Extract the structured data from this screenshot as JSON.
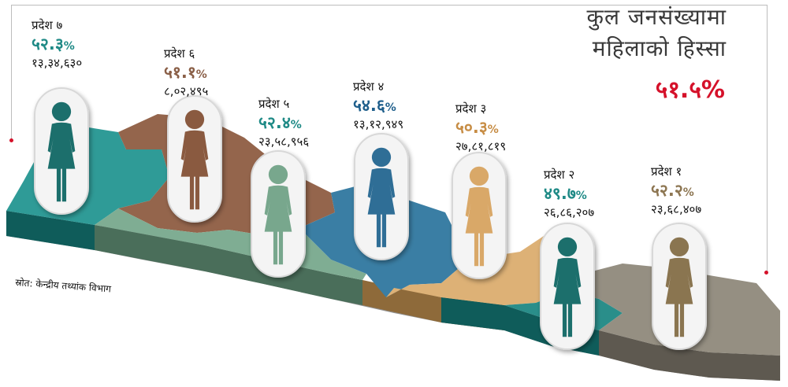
{
  "title_line1": "कुल जनसंख्यामा",
  "title_line2": "महिलाको हिस्सा",
  "overall_share": "५१.५%",
  "source": "स्रोत: केन्द्रीय तथ्यांक विभाग",
  "colors": {
    "overall": "#d5112a",
    "teal": "#1f8a86",
    "brown": "#8a5f47",
    "sage": "#78a78d",
    "blue": "#2f6e96",
    "tan": "#d6a76a",
    "olive": "#8d7652",
    "gray": "#8c8577"
  },
  "provinces": [
    {
      "name": "प्रदेश ७",
      "pct": "५२.३",
      "pop": "१३,३४,६३०",
      "pct_color": "#1f8a86",
      "figure_icon": "woman-icon"
    },
    {
      "name": "प्रदेश ६",
      "pct": "५१.१",
      "pop": "८,०२,४९५",
      "pct_color": "#8a5f47",
      "figure_icon": "woman-icon"
    },
    {
      "name": "प्रदेश ५",
      "pct": "५२.४",
      "pop": "२३,५८,९५६",
      "pct_color": "#1f8a86",
      "figure_icon": "woman-icon"
    },
    {
      "name": "प्रदेश ४",
      "pct": "५४.६",
      "pop": "१३,१२,९४९",
      "pct_color": "#1f5f8c",
      "figure_icon": "woman-icon"
    },
    {
      "name": "प्रदेश ३",
      "pct": "५०.३",
      "pop": "२७,८१,८१९",
      "pct_color": "#c78d45",
      "figure_icon": "woman-icon"
    },
    {
      "name": "प्रदेश २",
      "pct": "४९.७",
      "pop": "२६,८६,२०७",
      "pct_color": "#1f8a86",
      "figure_icon": "woman-icon"
    },
    {
      "name": "प्रदेश १",
      "pct": "५२.२",
      "pop": "२३,६८,४०७",
      "pct_color": "#8d7652",
      "figure_icon": "woman-icon"
    }
  ],
  "pct_suffix": "%"
}
